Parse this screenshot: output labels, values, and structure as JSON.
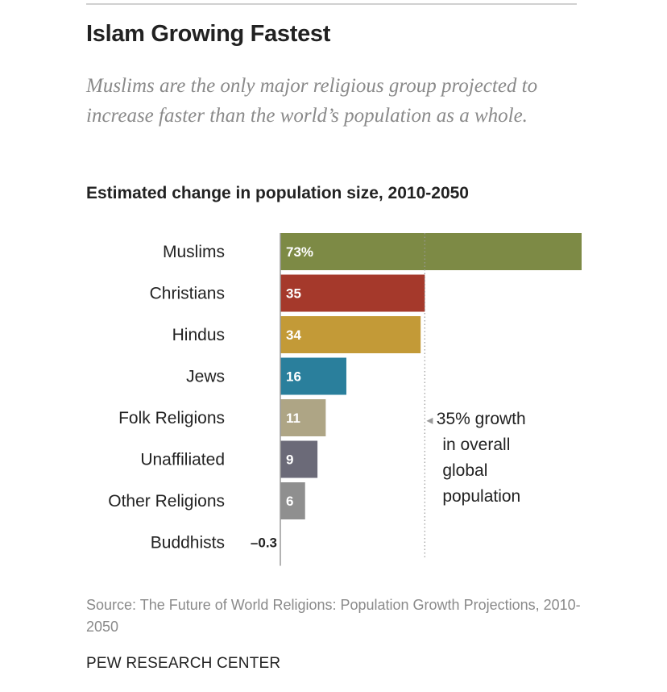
{
  "header": {
    "title": "Islam Growing Fastest",
    "subtitle": "Muslims are the only major religious group projected to increase faster than the world’s population as a whole."
  },
  "chart_data": {
    "type": "bar",
    "orientation": "horizontal",
    "title": "Estimated change in population size, 2010-2050",
    "categories": [
      "Muslims",
      "Christians",
      "Hindus",
      "Jews",
      "Folk Religions",
      "Unaffiliated",
      "Other Religions",
      "Buddhists"
    ],
    "values": [
      73,
      35,
      34,
      16,
      11,
      9,
      6,
      -0.3
    ],
    "value_labels": [
      "73%",
      "35",
      "34",
      "16",
      "11",
      "9",
      "6",
      "-0.3"
    ],
    "colors": [
      "#7d8a45",
      "#a5392b",
      "#c39a37",
      "#2a7f9c",
      "#aea585",
      "#6b6a78",
      "#8f8f8f",
      "#c0c0c0"
    ],
    "reference_line": {
      "value": 35,
      "label_lines": [
        "◂ 35% growth",
        "in overall",
        "global",
        "population"
      ]
    },
    "xlim": [
      -0.3,
      73
    ],
    "xlabel": "",
    "ylabel": "",
    "grid": false,
    "legend": "none"
  },
  "footer": {
    "source": "Source: The Future of World Religions: Population Growth Projections, 2010-2050",
    "org": "PEW RESEARCH CENTER"
  }
}
